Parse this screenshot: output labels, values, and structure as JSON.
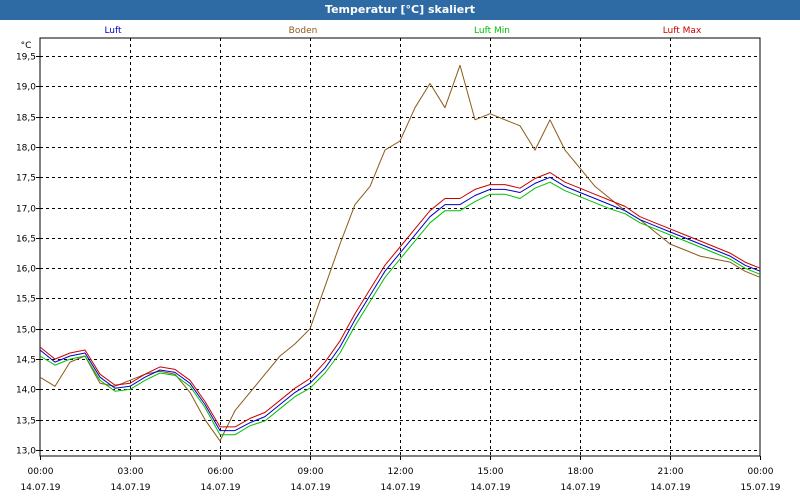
{
  "window": {
    "title": "Temperatur [°C] skaliert"
  },
  "colors": {
    "titlebar": "#2e6aa3",
    "grid": "#000000",
    "axis": "#000000"
  },
  "chart_data": {
    "type": "line",
    "title": "Temperatur [°C] skaliert",
    "ylabel": "°C",
    "xlabel": "",
    "ylim": [
      12.9,
      19.8
    ],
    "xlim": [
      0,
      24
    ],
    "grid": true,
    "legend_position": "top",
    "yticks": [
      13.0,
      13.5,
      14.0,
      14.5,
      15.0,
      15.5,
      16.0,
      16.5,
      17.0,
      17.5,
      18.0,
      18.5,
      19.0,
      19.5
    ],
    "ytick_labels": [
      "13,0",
      "13,5",
      "14,0",
      "14,5",
      "15,0",
      "15,5",
      "16,0",
      "16,5",
      "17,0",
      "17,5",
      "18,0",
      "18,5",
      "19,0",
      "19,5"
    ],
    "xticks": [
      {
        "x": 0,
        "time": "00:00",
        "date": "14.07.19"
      },
      {
        "x": 3,
        "time": "03:00",
        "date": "14.07.19"
      },
      {
        "x": 6,
        "time": "06:00",
        "date": "14.07.19"
      },
      {
        "x": 9,
        "time": "09:00",
        "date": "14.07.19"
      },
      {
        "x": 12,
        "time": "12:00",
        "date": "14.07.19"
      },
      {
        "x": 15,
        "time": "15:00",
        "date": "14.07.19"
      },
      {
        "x": 18,
        "time": "18:00",
        "date": "14.07.19"
      },
      {
        "x": 21,
        "time": "21:00",
        "date": "14.07.19"
      },
      {
        "x": 24,
        "time": "00:00",
        "date": "15.07.19"
      }
    ],
    "x": [
      0,
      0.5,
      1,
      1.5,
      2,
      2.5,
      3,
      3.5,
      4,
      4.5,
      5,
      5.5,
      6,
      6.5,
      7,
      7.5,
      8,
      8.5,
      9,
      9.5,
      10,
      10.5,
      11,
      11.5,
      12,
      12.5,
      13,
      13.5,
      14,
      14.5,
      15,
      15.5,
      16,
      16.5,
      17,
      17.5,
      18,
      18.5,
      19,
      19.5,
      20,
      20.5,
      21,
      21.5,
      22,
      22.5,
      23,
      23.5,
      24
    ],
    "series": [
      {
        "name": "Luft",
        "color": "#0000cc",
        "values": [
          14.65,
          14.45,
          14.55,
          14.6,
          14.2,
          14.02,
          14.05,
          14.2,
          14.32,
          14.28,
          14.1,
          13.75,
          13.32,
          13.32,
          13.45,
          13.55,
          13.75,
          13.95,
          14.1,
          14.35,
          14.7,
          15.15,
          15.55,
          15.95,
          16.25,
          16.55,
          16.85,
          17.05,
          17.05,
          17.2,
          17.3,
          17.3,
          17.25,
          17.4,
          17.5,
          17.35,
          17.25,
          17.15,
          17.05,
          16.95,
          16.8,
          16.7,
          16.6,
          16.5,
          16.4,
          16.3,
          16.2,
          16.05,
          15.95
        ]
      },
      {
        "name": "Boden",
        "color": "#8b5a1a",
        "values": [
          14.2,
          14.05,
          14.45,
          14.55,
          14.1,
          14.05,
          14.15,
          14.25,
          14.3,
          14.25,
          13.95,
          13.5,
          13.15,
          13.65,
          13.95,
          14.25,
          14.55,
          14.75,
          15.0,
          15.7,
          16.4,
          17.05,
          17.35,
          17.95,
          18.1,
          18.65,
          19.05,
          18.65,
          19.35,
          18.45,
          18.55,
          18.45,
          18.35,
          17.95,
          18.45,
          17.95,
          17.65,
          17.35,
          17.15,
          16.95,
          16.8,
          16.6,
          16.4,
          16.3,
          16.2,
          16.15,
          16.1,
          15.95,
          15.85
        ]
      },
      {
        "name": "Luft Min",
        "color": "#00c000",
        "values": [
          14.55,
          14.4,
          14.5,
          14.55,
          14.15,
          13.97,
          14.0,
          14.15,
          14.27,
          14.23,
          14.05,
          13.7,
          13.25,
          13.25,
          13.4,
          13.48,
          13.68,
          13.88,
          14.02,
          14.27,
          14.6,
          15.05,
          15.45,
          15.85,
          16.15,
          16.45,
          16.75,
          16.95,
          16.95,
          17.1,
          17.22,
          17.22,
          17.15,
          17.32,
          17.42,
          17.28,
          17.18,
          17.08,
          16.98,
          16.9,
          16.75,
          16.65,
          16.55,
          16.45,
          16.35,
          16.25,
          16.15,
          16.0,
          15.9
        ]
      },
      {
        "name": "Luft Max",
        "color": "#cc0000",
        "values": [
          14.7,
          14.5,
          14.6,
          14.65,
          14.25,
          14.07,
          14.1,
          14.25,
          14.37,
          14.33,
          14.15,
          13.8,
          13.38,
          13.38,
          13.52,
          13.62,
          13.82,
          14.02,
          14.18,
          14.45,
          14.8,
          15.25,
          15.65,
          16.05,
          16.35,
          16.65,
          16.95,
          17.15,
          17.15,
          17.3,
          17.38,
          17.38,
          17.32,
          17.48,
          17.58,
          17.42,
          17.32,
          17.22,
          17.12,
          17.02,
          16.85,
          16.75,
          16.65,
          16.55,
          16.45,
          16.35,
          16.25,
          16.1,
          16.0
        ]
      }
    ]
  }
}
